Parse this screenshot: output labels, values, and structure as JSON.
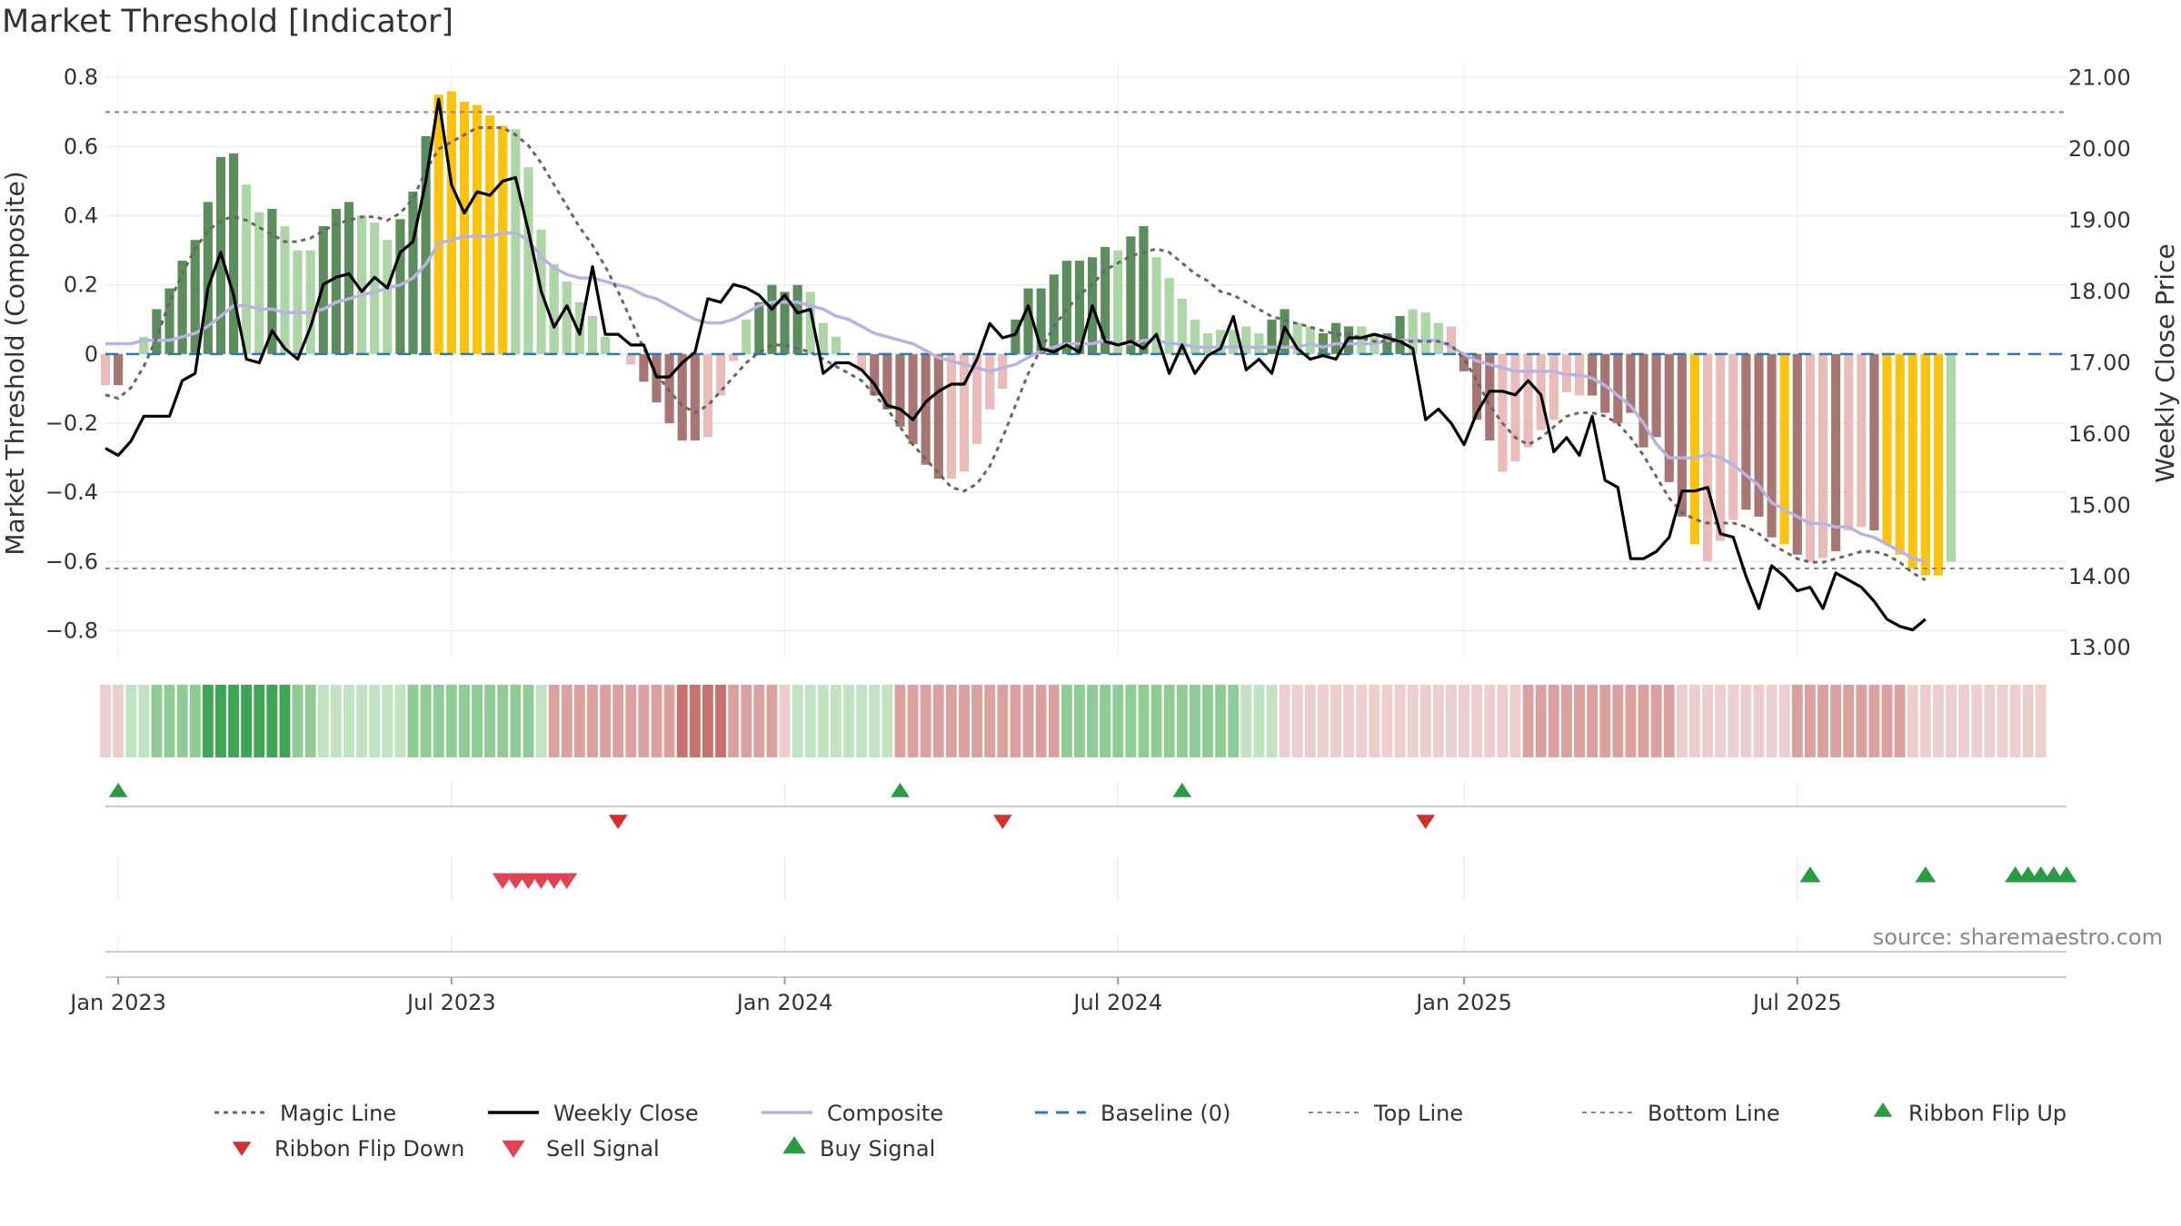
{
  "chart_data": {
    "type": "bar",
    "title": "Market Threshold [Indicator]",
    "ylabel": "Market Threshold (Composite)",
    "y2label": "Weekly Close Price",
    "ylim": [
      -0.88,
      0.84
    ],
    "y2lim": [
      12.85,
      21.2
    ],
    "yticks": [
      "0.8",
      "0.6",
      "0.4",
      "0.2",
      "0",
      "−0.2",
      "−0.4",
      "−0.6",
      "−0.8"
    ],
    "y2ticks": [
      "21.00",
      "20.00",
      "19.00",
      "18.00",
      "17.00",
      "16.00",
      "15.00",
      "14.00",
      "13.00"
    ],
    "xticks": [
      "Jan 2023",
      "Jul 2023",
      "Jan 2024",
      "Jul 2024",
      "Jan 2025",
      "Jul 2025"
    ],
    "top_line": 0.7,
    "bottom_line": -0.62,
    "baseline": 0,
    "source": "source: sharemaestro.com",
    "grid": true,
    "legend_position": "bottom",
    "colors": {
      "strong_up": "#5c8d5c",
      "weak_up": "#acd6a6",
      "strong_down": "#a87672",
      "weak_down": "#e9bcba",
      "extreme": "#fcc30e",
      "weekly_close": "#000000",
      "magic_line": "#666666",
      "composite": "#b9b3e2",
      "baseline": "#2a7ab4",
      "ribbon_up": "#2b9a44",
      "ribbon_down": "#d32f2f",
      "sell": "#e04452",
      "buy": "#2b9a44"
    },
    "composite": [
      -0.09,
      -0.09,
      0.0,
      0.05,
      0.13,
      0.19,
      0.27,
      0.33,
      0.44,
      0.57,
      0.58,
      0.49,
      0.41,
      0.42,
      0.37,
      0.3,
      0.3,
      0.37,
      0.42,
      0.44,
      0.4,
      0.38,
      0.33,
      0.39,
      0.47,
      0.63,
      0.75,
      0.76,
      0.73,
      0.72,
      0.69,
      0.66,
      0.65,
      0.54,
      0.36,
      0.26,
      0.21,
      0.15,
      0.11,
      0.05,
      0.0,
      -0.03,
      -0.08,
      -0.14,
      -0.2,
      -0.25,
      -0.25,
      -0.24,
      -0.12,
      -0.02,
      0.1,
      0.15,
      0.2,
      0.18,
      0.2,
      0.18,
      0.09,
      0.05,
      0.0,
      -0.05,
      -0.12,
      -0.16,
      -0.21,
      -0.26,
      -0.32,
      -0.36,
      -0.36,
      -0.34,
      -0.26,
      -0.16,
      -0.1,
      0.1,
      0.19,
      0.19,
      0.23,
      0.27,
      0.27,
      0.28,
      0.31,
      0.3,
      0.34,
      0.37,
      0.28,
      0.22,
      0.16,
      0.1,
      0.06,
      0.07,
      0.07,
      0.08,
      0.06,
      0.1,
      0.13,
      0.09,
      0.08,
      0.06,
      0.09,
      0.08,
      0.08,
      0.06,
      0.06,
      0.11,
      0.13,
      0.12,
      0.09,
      0.08,
      -0.05,
      -0.19,
      -0.25,
      -0.34,
      -0.31,
      -0.27,
      -0.22,
      -0.19,
      -0.11,
      -0.12,
      -0.12,
      -0.17,
      -0.2,
      -0.17,
      -0.27,
      -0.24,
      -0.37,
      -0.47,
      -0.55,
      -0.6,
      -0.54,
      -0.48,
      -0.45,
      -0.47,
      -0.53,
      -0.55,
      -0.58,
      -0.6,
      -0.59,
      -0.57,
      -0.51,
      -0.5,
      -0.51,
      -0.55,
      -0.58,
      -0.62,
      -0.64,
      -0.64,
      -0.6
    ],
    "bar_category": [
      "wd",
      "sd",
      "wu",
      "wu",
      "su",
      "su",
      "su",
      "su",
      "su",
      "su",
      "su",
      "wu",
      "wu",
      "su",
      "wu",
      "wu",
      "wu",
      "su",
      "su",
      "su",
      "wu",
      "wu",
      "wu",
      "su",
      "su",
      "su",
      "ex",
      "ex",
      "ex",
      "ex",
      "ex",
      "ex",
      "wu",
      "wu",
      "wu",
      "wu",
      "wu",
      "wu",
      "wu",
      "wu",
      "wu",
      "wd",
      "sd",
      "sd",
      "sd",
      "sd",
      "sd",
      "wd",
      "wd",
      "wd",
      "wu",
      "su",
      "su",
      "su",
      "su",
      "wu",
      "wu",
      "wu",
      "wd",
      "wd",
      "sd",
      "sd",
      "sd",
      "sd",
      "sd",
      "sd",
      "wd",
      "wd",
      "wd",
      "wd",
      "wd",
      "su",
      "su",
      "su",
      "su",
      "su",
      "su",
      "su",
      "su",
      "wu",
      "su",
      "su",
      "wu",
      "wu",
      "wu",
      "wu",
      "wu",
      "wu",
      "wu",
      "wu",
      "wu",
      "su",
      "su",
      "wu",
      "wu",
      "su",
      "su",
      "su",
      "wu",
      "wu",
      "su",
      "su",
      "wu",
      "wu",
      "wu",
      "wd",
      "sd",
      "sd",
      "sd",
      "wd",
      "wd",
      "wd",
      "wd",
      "wd",
      "wd",
      "wd",
      "sd",
      "sd",
      "sd",
      "sd",
      "sd",
      "sd",
      "sd",
      "sd",
      "ex",
      "wd",
      "wd",
      "wd",
      "sd",
      "sd",
      "sd",
      "ex",
      "sd",
      "wd",
      "wd",
      "sd",
      "wd",
      "wd",
      "sd",
      "ex",
      "ex",
      "ex",
      "ex",
      "ex"
    ],
    "weekly_close": [
      15.8,
      15.7,
      15.9,
      16.25,
      16.25,
      16.25,
      16.75,
      16.85,
      18.05,
      18.55,
      17.95,
      17.05,
      17.0,
      17.45,
      17.2,
      17.05,
      17.5,
      18.1,
      18.2,
      18.25,
      18.0,
      18.2,
      18.05,
      18.55,
      18.7,
      19.55,
      20.7,
      19.5,
      19.1,
      19.4,
      19.35,
      19.55,
      19.6,
      18.85,
      18.0,
      17.5,
      17.8,
      17.4,
      18.35,
      17.4,
      17.4,
      17.25,
      17.25,
      16.8,
      16.8,
      17.0,
      17.15,
      17.9,
      17.85,
      18.1,
      18.05,
      17.95,
      17.75,
      17.95,
      17.7,
      17.75,
      16.85,
      17.0,
      17.0,
      16.9,
      16.7,
      16.4,
      16.35,
      16.2,
      16.45,
      16.6,
      16.7,
      16.7,
      17.05,
      17.55,
      17.35,
      17.4,
      17.8,
      17.2,
      17.15,
      17.25,
      17.15,
      17.8,
      17.3,
      17.25,
      17.3,
      17.2,
      17.4,
      16.85,
      17.25,
      16.85,
      17.1,
      17.2,
      17.65,
      16.9,
      17.05,
      16.85,
      17.5,
      17.2,
      17.05,
      17.1,
      17.05,
      17.35,
      17.35,
      17.4,
      17.35,
      17.3,
      17.2,
      16.2,
      16.35,
      16.15,
      15.85,
      16.3,
      16.6,
      16.6,
      16.55,
      16.75,
      16.55,
      15.75,
      15.95,
      15.7,
      16.25,
      15.35,
      15.25,
      14.25,
      14.25,
      14.35,
      14.55,
      15.2,
      15.2,
      15.25,
      14.6,
      14.55,
      14.0,
      13.55,
      14.15,
      14.0,
      13.8,
      13.85,
      13.55,
      14.05,
      13.95,
      13.85,
      13.65,
      13.4,
      13.3,
      13.25,
      13.4
    ],
    "magic_line": [
      16.55,
      16.5,
      16.65,
      16.95,
      17.35,
      17.85,
      18.25,
      18.6,
      18.85,
      19.0,
      19.05,
      19.0,
      18.9,
      18.8,
      18.7,
      18.7,
      18.75,
      18.85,
      18.95,
      19.0,
      19.05,
      19.05,
      19.0,
      19.1,
      19.3,
      19.7,
      20.0,
      20.1,
      20.2,
      20.3,
      20.3,
      20.3,
      20.2,
      20.05,
      19.8,
      19.5,
      19.2,
      18.9,
      18.65,
      18.35,
      18.0,
      17.6,
      17.2,
      16.85,
      16.6,
      16.4,
      16.3,
      16.4,
      16.6,
      16.8,
      17.0,
      17.15,
      17.25,
      17.25,
      17.2,
      17.15,
      17.05,
      16.95,
      16.85,
      16.75,
      16.55,
      16.35,
      16.1,
      15.85,
      15.65,
      15.45,
      15.25,
      15.2,
      15.3,
      15.55,
      15.95,
      16.4,
      16.85,
      17.2,
      17.5,
      17.75,
      17.95,
      18.1,
      18.3,
      18.4,
      18.5,
      18.55,
      18.6,
      18.55,
      18.4,
      18.25,
      18.15,
      18.0,
      17.95,
      17.85,
      17.75,
      17.65,
      17.6,
      17.55,
      17.5,
      17.45,
      17.4,
      17.4,
      17.35,
      17.3,
      17.3,
      17.3,
      17.3,
      17.3,
      17.3,
      17.25,
      17.05,
      16.75,
      16.4,
      16.15,
      15.95,
      15.85,
      15.95,
      16.1,
      16.25,
      16.3,
      16.3,
      16.25,
      16.15,
      15.95,
      15.7,
      15.4,
      15.1,
      14.9,
      14.8,
      14.75,
      14.75,
      14.75,
      14.7,
      14.6,
      14.45,
      14.35,
      14.25,
      14.2,
      14.2,
      14.25,
      14.3,
      14.35,
      14.35,
      14.3,
      14.2,
      14.05,
      13.95
    ],
    "composite_line": [
      0.03,
      0.03,
      0.03,
      0.04,
      0.04,
      0.04,
      0.05,
      0.06,
      0.08,
      0.11,
      0.14,
      0.14,
      0.13,
      0.13,
      0.12,
      0.12,
      0.12,
      0.13,
      0.15,
      0.16,
      0.17,
      0.18,
      0.19,
      0.2,
      0.22,
      0.26,
      0.32,
      0.33,
      0.34,
      0.34,
      0.34,
      0.35,
      0.35,
      0.33,
      0.28,
      0.25,
      0.23,
      0.22,
      0.22,
      0.21,
      0.2,
      0.19,
      0.17,
      0.16,
      0.14,
      0.12,
      0.1,
      0.09,
      0.09,
      0.1,
      0.12,
      0.14,
      0.15,
      0.15,
      0.15,
      0.14,
      0.13,
      0.11,
      0.1,
      0.08,
      0.06,
      0.05,
      0.04,
      0.03,
      0.01,
      -0.01,
      -0.02,
      -0.03,
      -0.04,
      -0.05,
      -0.04,
      -0.03,
      -0.01,
      0.01,
      0.02,
      0.03,
      0.03,
      0.03,
      0.04,
      0.03,
      0.03,
      0.04,
      0.04,
      0.03,
      0.03,
      0.02,
      0.02,
      0.02,
      0.02,
      0.02,
      0.02,
      0.02,
      0.02,
      0.02,
      0.03,
      0.02,
      0.03,
      0.03,
      0.03,
      0.03,
      0.04,
      0.04,
      0.04,
      0.04,
      0.04,
      0.02,
      0.0,
      -0.02,
      -0.03,
      -0.04,
      -0.05,
      -0.05,
      -0.05,
      -0.05,
      -0.06,
      -0.06,
      -0.07,
      -0.09,
      -0.12,
      -0.15,
      -0.2,
      -0.26,
      -0.3,
      -0.3,
      -0.3,
      -0.29,
      -0.3,
      -0.32,
      -0.35,
      -0.38,
      -0.43,
      -0.45,
      -0.47,
      -0.49,
      -0.49,
      -0.5,
      -0.5,
      -0.52,
      -0.53,
      -0.55,
      -0.57,
      -0.59,
      -0.6
    ],
    "ribbon": [
      "wd",
      "wd",
      "wu",
      "wu",
      "mu",
      "mu",
      "mu",
      "mu",
      "su",
      "su",
      "su",
      "su",
      "su",
      "su",
      "su",
      "mu",
      "mu",
      "wu",
      "wu",
      "wu",
      "wu",
      "wu",
      "wu",
      "wu",
      "mu",
      "mu",
      "mu",
      "mu",
      "mu",
      "mu",
      "mu",
      "mu",
      "mu",
      "mu",
      "wu",
      "md",
      "md",
      "md",
      "md",
      "md",
      "md",
      "md",
      "md",
      "md",
      "md",
      "sd",
      "sd",
      "sd",
      "sd",
      "md",
      "md",
      "md",
      "md",
      "wd",
      "wu",
      "wu",
      "wu",
      "wu",
      "wu",
      "wu",
      "wu",
      "wu",
      "md",
      "md",
      "md",
      "md",
      "md",
      "md",
      "md",
      "md",
      "md",
      "md",
      "md",
      "md",
      "md",
      "mu",
      "mu",
      "mu",
      "mu",
      "mu",
      "mu",
      "mu",
      "mu",
      "mu",
      "mu",
      "mu",
      "mu",
      "mu",
      "mu",
      "wu",
      "wu",
      "wu",
      "wd",
      "wd",
      "wd",
      "wd",
      "wd",
      "wd",
      "wd",
      "wd",
      "wd",
      "wd",
      "wd",
      "wd",
      "wd",
      "wd",
      "wd",
      "wd",
      "wd",
      "wd",
      "wd",
      "md",
      "md",
      "md",
      "md",
      "md",
      "md",
      "md",
      "md",
      "md",
      "md",
      "md",
      "md",
      "wd",
      "wd",
      "wd",
      "wd",
      "wd",
      "wd",
      "wd",
      "wd",
      "wd",
      "md",
      "md",
      "md",
      "md",
      "md",
      "md",
      "md",
      "md",
      "md",
      "wd",
      "wd",
      "wd",
      "wd",
      "wd",
      "wd",
      "wd",
      "wd",
      "wd",
      "wd",
      "wd"
    ],
    "ribbon_flip_up_weeks": [
      1,
      62,
      84
    ],
    "ribbon_flip_down_weeks": [
      40,
      70,
      103
    ],
    "sell_signal_weeks": [
      31,
      32,
      33,
      34,
      35,
      36
    ],
    "buy_signal_weeks": [
      133,
      142,
      149,
      150,
      151,
      152,
      153
    ],
    "week_range": [
      0,
      153
    ],
    "xtick_weeks": [
      1,
      27,
      53,
      79,
      106,
      132
    ]
  },
  "legend": {
    "items": [
      {
        "label": "Magic Line",
        "symbol": "dotted",
        "color": "#666666"
      },
      {
        "label": "Weekly Close",
        "symbol": "solid",
        "color": "#000000"
      },
      {
        "label": "Composite",
        "symbol": "solid",
        "color": "#b9b3e2"
      },
      {
        "label": "Baseline (0)",
        "symbol": "dashed",
        "color": "#2a7ab4"
      },
      {
        "label": "Top Line",
        "symbol": "dotted-thin",
        "color": "#888888"
      },
      {
        "label": "Bottom Line",
        "symbol": "dotted-thin",
        "color": "#888888"
      },
      {
        "label": "Ribbon Flip Up",
        "symbol": "triangle-up",
        "color": "#2b9a44"
      },
      {
        "label": "Ribbon Flip Down",
        "symbol": "triangle-down",
        "color": "#d32f2f"
      },
      {
        "label": "Sell Signal",
        "symbol": "triangle-down-lg",
        "color": "#e04452"
      },
      {
        "label": "Buy Signal",
        "symbol": "triangle-up-lg",
        "color": "#2b9a44"
      }
    ]
  }
}
